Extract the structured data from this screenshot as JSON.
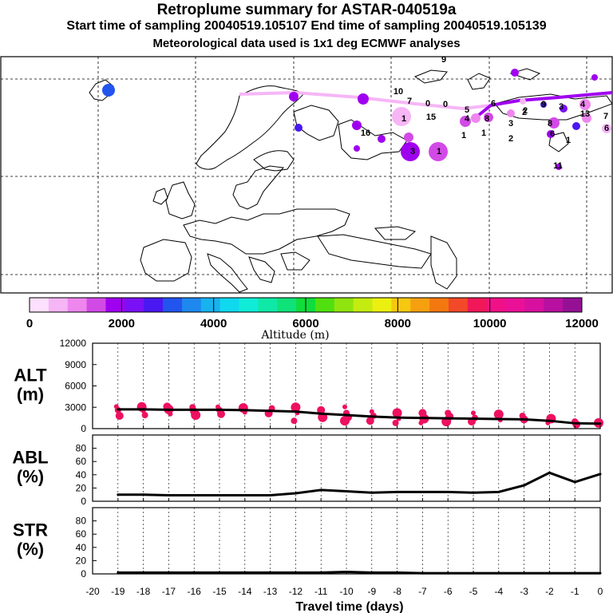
{
  "header": {
    "title": "Retroplume summary for ASTAR-040519a",
    "sampling": "Start time of sampling 20040519.105107     End time of sampling 20040519.105139",
    "meteo": "Meteorological data used is 1x1 deg ECMWF analyses"
  },
  "colorbar": {
    "label": "Altitude (m)",
    "ticks": [
      "0",
      "2000",
      "4000",
      "6000",
      "8000",
      "10000",
      "12000"
    ],
    "colors": [
      "#fde0fd",
      "#f6b6f6",
      "#ee86ee",
      "#d24ae6",
      "#a000f0",
      "#7a10f5",
      "#4a18f0",
      "#2255ee",
      "#1e88ee",
      "#18b2ee",
      "#10d8ee",
      "#10ecd8",
      "#10e8a8",
      "#10e27a",
      "#10dc3c",
      "#50e010",
      "#90e410",
      "#c4ec10",
      "#ecf010",
      "#f6c810",
      "#f6a010",
      "#f47810",
      "#f24a28",
      "#f01858",
      "#f01088",
      "#ea1098",
      "#d810a0",
      "#b810a0",
      "#961096"
    ]
  },
  "map_labels": [
    "9",
    "1",
    "5",
    "2",
    "3",
    "1",
    "6",
    "2",
    "1",
    "4",
    "7",
    "3",
    "8",
    "6",
    "8",
    "11",
    "15",
    "0",
    "16",
    "10",
    "4",
    "0",
    "3",
    "1",
    "7",
    "2",
    "13",
    "1",
    "6",
    "9"
  ],
  "chart_data": [
    {
      "id": "alt",
      "type": "line",
      "label_top": "ALT",
      "label_bottom": "(m)",
      "x": [
        -19,
        -18,
        -17,
        -16,
        -15,
        -14,
        -13,
        -12,
        -11,
        -10,
        -9,
        -8,
        -7,
        -6,
        -5,
        -4,
        -3,
        -2,
        -1,
        0
      ],
      "y": [
        2700,
        2700,
        2650,
        2650,
        2650,
        2600,
        2500,
        2400,
        2100,
        1900,
        1700,
        1550,
        1500,
        1450,
        1400,
        1350,
        1300,
        1100,
        750,
        700
      ],
      "ylim": [
        0,
        12000
      ],
      "yticks": [
        "0",
        "3000",
        "6000",
        "9000",
        "12000"
      ],
      "series_color": "#ee1060",
      "spread": [
        [
          -19,
          3100
        ],
        [
          -19,
          2600
        ],
        [
          -19,
          1800
        ],
        [
          -18,
          3050
        ],
        [
          -18,
          2500
        ],
        [
          -18,
          1900
        ],
        [
          -17,
          3100
        ],
        [
          -17,
          2700
        ],
        [
          -17,
          2050
        ],
        [
          -16,
          3000
        ],
        [
          -16,
          2400
        ],
        [
          -16,
          1900
        ],
        [
          -15,
          3050
        ],
        [
          -15,
          2600
        ],
        [
          -15,
          2050
        ],
        [
          -14,
          2900
        ],
        [
          -14,
          2300
        ],
        [
          -13,
          2850
        ],
        [
          -13,
          2150
        ],
        [
          -12,
          3000
        ],
        [
          -12,
          2200
        ],
        [
          -12,
          1100
        ],
        [
          -11,
          2600
        ],
        [
          -11,
          1600
        ],
        [
          -10,
          3050
        ],
        [
          -10,
          2200
        ],
        [
          -10,
          1600
        ],
        [
          -10,
          1100
        ],
        [
          -9,
          2400
        ],
        [
          -9,
          1800
        ],
        [
          -9,
          1100
        ],
        [
          -8,
          2200
        ],
        [
          -8,
          1400
        ],
        [
          -8,
          800
        ],
        [
          -7,
          2200
        ],
        [
          -7,
          1400
        ],
        [
          -7,
          800
        ],
        [
          -6,
          2200
        ],
        [
          -6,
          1700
        ],
        [
          -6,
          1000
        ],
        [
          -5,
          2200
        ],
        [
          -5,
          1500
        ],
        [
          -5,
          1000
        ],
        [
          -4,
          2000
        ],
        [
          -4,
          1200
        ],
        [
          -3,
          1800
        ],
        [
          -3,
          1300
        ],
        [
          -2,
          1400
        ],
        [
          -2,
          800
        ],
        [
          -1,
          1000
        ],
        [
          -1,
          600
        ],
        [
          0,
          800
        ],
        [
          0,
          550
        ]
      ]
    },
    {
      "id": "abl",
      "type": "line",
      "label_top": "ABL",
      "label_bottom": "(%)",
      "x": [
        -19,
        -18,
        -17,
        -16,
        -15,
        -14,
        -13,
        -12,
        -11,
        -10,
        -9,
        -8,
        -7,
        -6,
        -5,
        -4,
        -3,
        -2,
        -1,
        0
      ],
      "y": [
        10,
        10,
        9,
        9,
        9,
        9,
        9,
        12,
        17,
        15,
        13,
        14,
        14,
        14,
        13,
        14,
        24,
        43,
        29,
        41
      ],
      "ylim": [
        0,
        100
      ],
      "yticks": [
        "0",
        "20",
        "40",
        "60",
        "80"
      ]
    },
    {
      "id": "str",
      "type": "line",
      "label_top": "STR",
      "label_bottom": "(%)",
      "x": [
        -19,
        -18,
        -17,
        -16,
        -15,
        -14,
        -13,
        -12,
        -11,
        -10,
        -9,
        -8,
        -7,
        -6,
        -5,
        -4,
        -3,
        -2,
        -1,
        0
      ],
      "y": [
        2,
        2,
        2,
        2,
        2,
        2,
        2,
        2,
        2,
        3,
        2,
        2,
        1,
        1,
        1,
        1,
        1,
        1,
        1,
        1
      ],
      "ylim": [
        0,
        100
      ],
      "yticks": [
        "0",
        "20",
        "40",
        "60",
        "80"
      ]
    }
  ],
  "xaxis": {
    "ticks": [
      "-20",
      "-19",
      "-18",
      "-17",
      "-16",
      "-15",
      "-14",
      "-13",
      "-12",
      "-11",
      "-10",
      "-9",
      "-8",
      "-7",
      "-6",
      "-5",
      "-4",
      "-3",
      "-2",
      "-1",
      "0"
    ],
    "label": "Travel time (days)"
  }
}
